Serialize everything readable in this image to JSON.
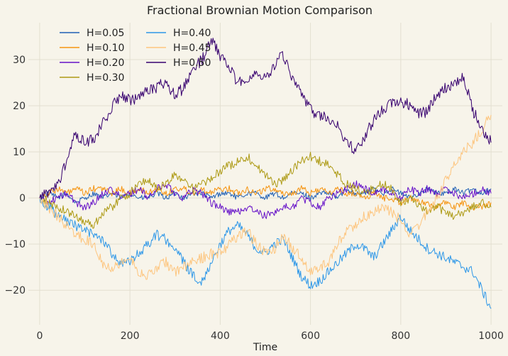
{
  "chart_data": {
    "type": "line",
    "title": "Fractional Brownian Motion Comparison",
    "xlabel": "Time",
    "ylabel": "",
    "xlim": [
      -25,
      1025
    ],
    "ylim": [
      -27.5,
      38
    ],
    "x_ticks": [
      0,
      200,
      400,
      600,
      800,
      1000
    ],
    "y_ticks": [
      -20,
      -10,
      0,
      10,
      20,
      30
    ],
    "tick_labels": {
      "x": [
        "0",
        "200",
        "400",
        "600",
        "800",
        "1000"
      ],
      "y": [
        "−20",
        "−10",
        "0",
        "10",
        "20",
        "30"
      ]
    },
    "grid": true,
    "legend": {
      "placement": "top-left",
      "columns": 2
    },
    "x": [
      0,
      20,
      40,
      60,
      80,
      100,
      120,
      140,
      160,
      180,
      200,
      220,
      240,
      260,
      280,
      300,
      320,
      340,
      360,
      380,
      400,
      420,
      440,
      460,
      480,
      500,
      520,
      540,
      560,
      580,
      600,
      620,
      640,
      660,
      680,
      700,
      720,
      740,
      760,
      780,
      800,
      820,
      840,
      860,
      880,
      900,
      920,
      940,
      960,
      980,
      1000
    ],
    "series": [
      {
        "name": "H=0.05",
        "color": "#1f5fb4",
        "values": [
          0,
          1,
          0,
          1,
          -1,
          0,
          1,
          0,
          1,
          0,
          1,
          0,
          0,
          1,
          0,
          1,
          0,
          1,
          1,
          0,
          1,
          1,
          0,
          1,
          1,
          0,
          1,
          0,
          1,
          1,
          0,
          1,
          1,
          0,
          2,
          1,
          1,
          2,
          1,
          2,
          1,
          0,
          1,
          2,
          1,
          1,
          2,
          1,
          2,
          1,
          2
        ]
      },
      {
        "name": "H=0.10",
        "color": "#f5930f",
        "values": [
          0,
          1,
          2,
          1,
          2,
          1,
          2,
          2,
          1,
          2,
          1,
          2,
          1,
          2,
          1,
          2,
          2,
          1,
          2,
          1,
          2,
          2,
          1,
          2,
          1,
          2,
          2,
          1,
          1,
          2,
          1,
          2,
          1,
          2,
          1,
          1,
          0,
          1,
          0,
          0,
          -1,
          0,
          -1,
          -1,
          -2,
          -1,
          -2,
          -1,
          -2,
          -2,
          -1
        ]
      },
      {
        "name": "H=0.20",
        "color": "#6510c8",
        "values": [
          0,
          -1,
          0,
          1,
          -1,
          -2,
          -1,
          1,
          2,
          0,
          1,
          2,
          0,
          2,
          3,
          1,
          0,
          2,
          1,
          -1,
          -2,
          -3,
          -3,
          -2,
          -3,
          -4,
          -3,
          -2,
          -2,
          0,
          -1,
          -2,
          0,
          1,
          2,
          3,
          2,
          1,
          2,
          1,
          0,
          2,
          1,
          2,
          1,
          2,
          1,
          0,
          1,
          2,
          1
        ]
      },
      {
        "name": "H=0.30",
        "color": "#ad9a14",
        "values": [
          0,
          -1,
          -2,
          -3,
          -4,
          -5,
          -6,
          -3,
          -2,
          0,
          1,
          3,
          4,
          2,
          3,
          5,
          4,
          2,
          3,
          4,
          6,
          7,
          8,
          9,
          7,
          5,
          3,
          4,
          6,
          8,
          9,
          8,
          7,
          5,
          3,
          2,
          1,
          2,
          3,
          2,
          -1,
          0,
          -2,
          -3,
          -2,
          -3,
          -4,
          -3,
          -2,
          -1,
          -2
        ]
      },
      {
        "name": "H=0.40",
        "color": "#2d97e8",
        "values": [
          0,
          -2,
          -4,
          -5,
          -6,
          -7,
          -8,
          -9,
          -12,
          -14,
          -14,
          -12,
          -10,
          -8,
          -9,
          -11,
          -14,
          -17,
          -18,
          -14,
          -10,
          -7,
          -6,
          -8,
          -11,
          -12,
          -10,
          -9,
          -13,
          -17,
          -19,
          -18,
          -16,
          -14,
          -12,
          -10,
          -11,
          -13,
          -10,
          -7,
          -4,
          -7,
          -9,
          -11,
          -12,
          -13,
          -14,
          -15,
          -16,
          -20,
          -24
        ]
      },
      {
        "name": "H=0.45",
        "color": "#fdc57e",
        "values": [
          0,
          -2,
          -4,
          -6,
          -8,
          -9,
          -10,
          -14,
          -15,
          -14,
          -13,
          -16,
          -17,
          -15,
          -14,
          -16,
          -15,
          -14,
          -13,
          -12,
          -12,
          -10,
          -8,
          -7,
          -10,
          -12,
          -11,
          -8,
          -11,
          -13,
          -16,
          -15,
          -14,
          -10,
          -7,
          -6,
          -4,
          -3,
          -2,
          -3,
          -5,
          -8,
          -6,
          -3,
          0,
          4,
          7,
          10,
          12,
          15,
          18
        ]
      },
      {
        "name": "H=0.50",
        "color": "#37006f",
        "values": [
          0,
          1,
          3,
          8,
          14,
          12,
          13,
          16,
          20,
          22,
          21,
          22,
          23,
          24,
          25,
          22,
          24,
          28,
          30,
          34,
          31,
          28,
          25,
          26,
          27,
          26,
          29,
          31,
          26,
          22,
          19,
          18,
          17,
          16,
          12,
          10,
          13,
          17,
          19,
          21,
          21,
          20,
          18,
          19,
          22,
          24,
          25,
          26,
          19,
          15,
          12
        ]
      }
    ]
  }
}
